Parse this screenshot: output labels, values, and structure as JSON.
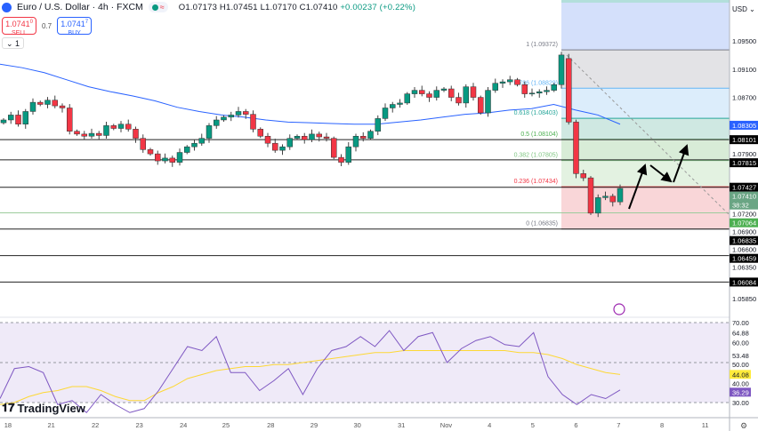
{
  "header": {
    "symbol": "Euro / U.S. Dollar · 4h · FXCM",
    "status_icon": "market-open-dot",
    "wave_icon": "≈",
    "open": "O1.07173",
    "high": "H1.07451",
    "low": "L1.07170",
    "close": "C1.07410",
    "change": "+0.00237 (+0.22%)"
  },
  "trade": {
    "sell_price": "1.0741",
    "sell_sup": "0",
    "sell_label": "SELL",
    "spread": "0.7",
    "buy_price": "1.0741",
    "buy_sup": "7",
    "buy_label": "BUY"
  },
  "indicators_toggle": "⌄ 1",
  "currency": "USD",
  "brand": "TradingView",
  "colors": {
    "up": "#089981",
    "down": "#f23645",
    "ma": "#2962ff",
    "rsi": "#7e57c2",
    "rsi_signal": "#fdd835"
  },
  "price_axis": [
    {
      "v": 1.095,
      "t": "1.09500"
    },
    {
      "v": 1.091,
      "t": "1.09100"
    },
    {
      "v": 1.087,
      "t": "1.08700"
    },
    {
      "v": 1.079,
      "t": "1.07900"
    },
    {
      "v": 1.072,
      "t": "1.07200"
    },
    {
      "v": 1.069,
      "t": "1.06900"
    },
    {
      "v": 1.066,
      "t": "1.06600"
    },
    {
      "v": 1.0635,
      "t": "1.06350"
    },
    {
      "v": 1.0585,
      "t": "1.05850"
    }
  ],
  "price_tags": [
    {
      "v": 1.08305,
      "t": "1.08305",
      "bg": "#2962ff"
    },
    {
      "v": 1.08101,
      "t": "1.08101",
      "bg": "#000000"
    },
    {
      "v": 1.07815,
      "t": "1.07815",
      "bg": "#000000"
    },
    {
      "v": 1.07427,
      "t": "1.07427",
      "bg": "#000000"
    },
    {
      "v": 1.0741,
      "t": "1.07410",
      "sub": "38:32",
      "bg": "#6aa584"
    },
    {
      "v": 1.07064,
      "t": "1.07064",
      "bg": "#4caf50"
    },
    {
      "v": 1.06835,
      "t": "1.06835",
      "bg": "#000000"
    },
    {
      "v": 1.06459,
      "t": "1.06459",
      "bg": "#000000"
    },
    {
      "v": 1.06084,
      "t": "1.06084",
      "bg": "#000000"
    }
  ],
  "horizontal_lines": [
    1.08101,
    1.07815,
    1.07427,
    1.07064,
    1.06835,
    1.06459,
    1.06084
  ],
  "fib": [
    {
      "level": "1",
      "price": "1.09372",
      "color": "#787b86",
      "zone": "#e3e3e6"
    },
    {
      "level": "0.786",
      "price": "1.08829",
      "color": "#64b5f6",
      "zone": "#dcedfb"
    },
    {
      "level": "0.618",
      "price": "1.08403",
      "color": "#26a69a",
      "zone": "#cfe8e2"
    },
    {
      "level": "0.5",
      "price": "1.08104",
      "color": "#4caf50",
      "zone": "#d8ecd7"
    },
    {
      "level": "0.382",
      "price": "1.07805",
      "color": "#81c784",
      "zone": "#e3f2e1"
    },
    {
      "level": "0.236",
      "price": "1.07434",
      "color": "#f23645",
      "zone": "#f9d6d8"
    },
    {
      "level": "0",
      "price": "1.06835",
      "color": "#787b86",
      "zone": null
    }
  ],
  "candles_close": [
    1.0838,
    1.0845,
    1.0832,
    1.085,
    1.0863,
    1.086,
    1.0866,
    1.0858,
    1.0855,
    1.0822,
    1.0818,
    1.0815,
    1.0819,
    1.0816,
    1.083,
    1.0826,
    1.0832,
    1.0825,
    1.0812,
    1.0796,
    1.079,
    1.078,
    1.0784,
    1.0778,
    1.0792,
    1.08,
    1.0805,
    1.0812,
    1.083,
    1.0838,
    1.0842,
    1.0845,
    1.085,
    1.0846,
    1.0825,
    1.0815,
    1.0805,
    1.0795,
    1.08,
    1.0812,
    1.0815,
    1.081,
    1.0818,
    1.0814,
    1.0812,
    1.0785,
    1.0778,
    1.08,
    1.0815,
    1.0812,
    1.0822,
    1.084,
    1.0855,
    1.086,
    1.0862,
    1.0875,
    1.088,
    1.0875,
    1.087,
    1.088,
    1.0882,
    1.087,
    1.0862,
    1.0885,
    1.087,
    1.0848,
    1.088,
    1.089,
    1.0892,
    1.0895,
    1.0888,
    1.0875,
    1.0876,
    1.0878,
    1.088,
    1.0888,
    1.093,
    1.0835,
    1.0762,
    1.0756,
    1.0706,
    1.0728,
    1.073,
    1.0722,
    1.0741
  ],
  "ma": [
    1.0917,
    1.0912,
    1.0905,
    1.0895,
    1.0885,
    1.0878,
    1.0872,
    1.0865,
    1.0856,
    1.085,
    1.0845,
    1.0842,
    1.0838,
    1.0835,
    1.0834,
    1.0833,
    1.0832,
    1.0832,
    1.0835,
    1.0838,
    1.0842,
    1.0846,
    1.0848,
    1.0852,
    1.0854,
    1.086,
    1.0852,
    1.0845,
    1.0832
  ],
  "rsi": {
    "upper": "70.00",
    "mid": "50.00",
    "lower": "30.00",
    "ticks": [
      "60.00",
      "40.00"
    ],
    "marks": [
      "64.88",
      "53.48"
    ],
    "signal_value": "44.08",
    "rsi_value": "36.29",
    "values": [
      32,
      47,
      48,
      45,
      29,
      31,
      25,
      34,
      29,
      25,
      27,
      36,
      47,
      58,
      56,
      63,
      45,
      45,
      36,
      41,
      47,
      34,
      47,
      56,
      58,
      63,
      58,
      66,
      56,
      63,
      65,
      50,
      57,
      61,
      63,
      59,
      58,
      65,
      43,
      34,
      29,
      34,
      32,
      36.29
    ],
    "signal": [
      29,
      30,
      33,
      35,
      36,
      38,
      38,
      36,
      33,
      31,
      31,
      35,
      38,
      42,
      44,
      46,
      47,
      48,
      48,
      49,
      49,
      50,
      51,
      52,
      53,
      54,
      55,
      55,
      56,
      56,
      56,
      56,
      56,
      56,
      56,
      56,
      55,
      55,
      54,
      52,
      49,
      47,
      45,
      44.08
    ]
  },
  "time_axis": [
    {
      "i": 0.6,
      "t": "18"
    },
    {
      "i": 6.5,
      "t": "21"
    },
    {
      "i": 12.5,
      "t": "22"
    },
    {
      "i": 18.5,
      "t": "23"
    },
    {
      "i": 24.5,
      "t": "24"
    },
    {
      "i": 30.3,
      "t": "25"
    },
    {
      "i": 36.4,
      "t": "28"
    },
    {
      "i": 42.3,
      "t": "29"
    },
    {
      "i": 48.2,
      "t": "30"
    },
    {
      "i": 54.2,
      "t": "31"
    },
    {
      "i": 60.3,
      "t": "Nov"
    },
    {
      "i": 66.2,
      "t": "4"
    },
    {
      "i": 72.1,
      "t": "5"
    },
    {
      "i": 78,
      "t": "6"
    },
    {
      "i": 83.8,
      "t": "7"
    },
    {
      "i": 89.7,
      "t": "8"
    },
    {
      "i": 95.6,
      "t": "11"
    }
  ]
}
